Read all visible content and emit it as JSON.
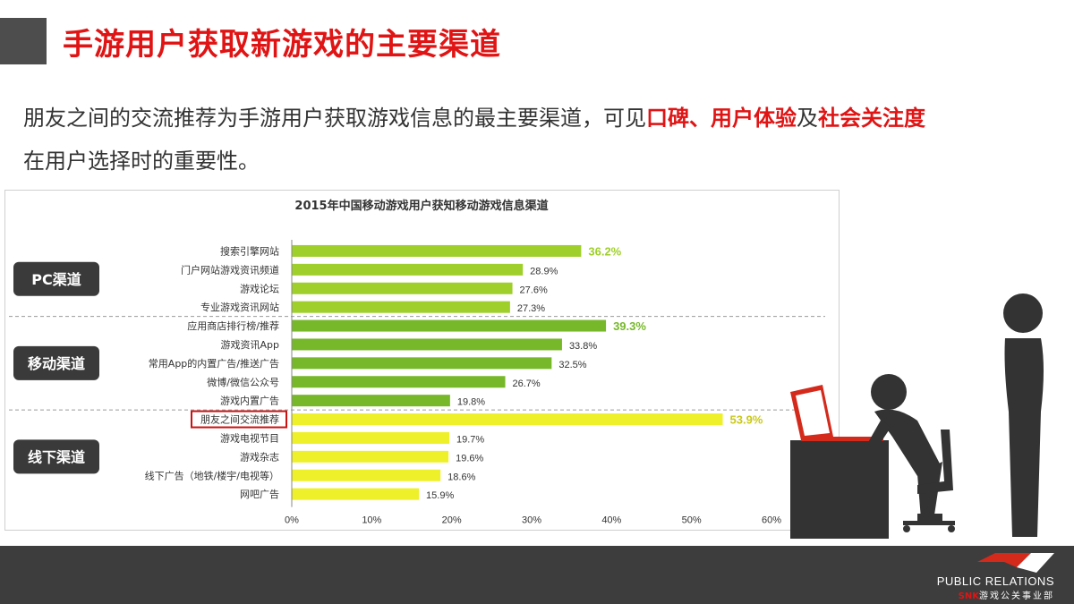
{
  "header": {
    "title": "手游用户获取新游戏的主要渠道"
  },
  "intro": {
    "part1": "朋友之间的交流推荐为手游用户获取游戏信息的最主要渠道，可见",
    "hl1": "口碑、用户体验",
    "part2": "及",
    "hl2": "社会关注度",
    "part3": "在用户选择时的重要性。"
  },
  "colors": {
    "accent": "#e01414",
    "pc_bar": "#9fcf2a",
    "mobile_bar": "#77b82a",
    "offline_bar": "#eef02a",
    "group_label_bg": "#3a3a3a",
    "footer": "#3d3d3d"
  },
  "chart_data": {
    "type": "bar",
    "orientation": "horizontal",
    "title": "2015年中国移动游戏用户获知移动游戏信息渠道",
    "xlim": [
      0,
      60
    ],
    "x_ticks": [
      "0%",
      "10%",
      "20%",
      "30%",
      "40%",
      "50%",
      "60%"
    ],
    "groups": [
      {
        "name": "PC渠道",
        "color": "#9fcf2a",
        "categories": [
          "搜索引擎网站",
          "门户网站游戏资讯频道",
          "游戏论坛",
          "专业游戏资讯网站"
        ],
        "values": [
          36.2,
          28.9,
          27.6,
          27.3
        ],
        "labels": [
          "36.2%",
          "28.9%",
          "27.6%",
          "27.3%"
        ],
        "highlight_index": 0
      },
      {
        "name": "移动渠道",
        "color": "#77b82a",
        "categories": [
          "应用商店排行榜/推荐",
          "游戏资讯App",
          "常用App的内置广告/推送广告",
          "微博/微信公众号",
          "游戏内置广告"
        ],
        "values": [
          39.3,
          33.8,
          32.5,
          26.7,
          19.8
        ],
        "labels": [
          "39.3%",
          "33.8%",
          "32.5%",
          "26.7%",
          "19.8%"
        ],
        "highlight_index": 0
      },
      {
        "name": "线下渠道",
        "color": "#eef02a",
        "categories": [
          "朋友之间交流推荐",
          "游戏电视节目",
          "游戏杂志",
          "线下广告（地铁/楼宇/电视等）",
          "网吧广告"
        ],
        "values": [
          53.9,
          19.7,
          19.6,
          18.6,
          15.9
        ],
        "labels": [
          "53.9%",
          "19.7%",
          "19.6%",
          "18.6%",
          "15.9%"
        ],
        "highlight_index": 0,
        "boxed_index": 0
      }
    ]
  },
  "footer": {
    "logo_en": "PUBLIC RELATIONS",
    "logo_snk": "SNK",
    "logo_cn": "游戏公关事业部"
  }
}
